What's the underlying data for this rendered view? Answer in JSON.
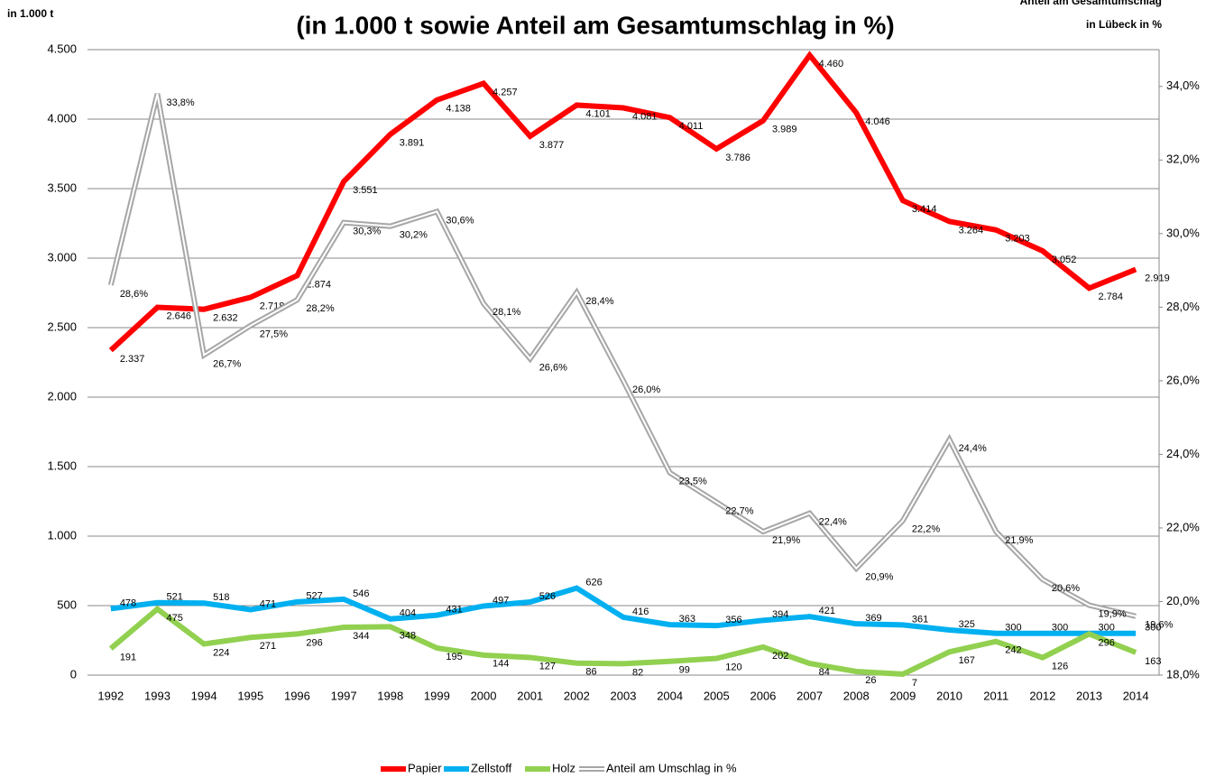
{
  "chart_data": {
    "type": "line",
    "title": "(in 1.000 t  sowie Anteil am Gesamtumschlag in %)",
    "y_label": "in 1.000 t",
    "y2_label": [
      "Anteil am Gesamtumschlag",
      "in Lübeck in %"
    ],
    "categories": [
      "1992",
      "1993",
      "1994",
      "1995",
      "1996",
      "1997",
      "1998",
      "1999",
      "2000",
      "2001",
      "2002",
      "2003",
      "2004",
      "2005",
      "2006",
      "2007",
      "2008",
      "2009",
      "2010",
      "2011",
      "2012",
      "2013",
      "2014"
    ],
    "ylim": [
      0,
      4500
    ],
    "yticks": [
      0,
      500,
      {
        "value": 1000,
        "label": "1.000"
      },
      {
        "value": 1500,
        "label": "1.500"
      },
      {
        "value": 2000,
        "label": "2.000"
      },
      {
        "value": 2500,
        "label": "2.500"
      },
      {
        "value": 3000,
        "label": "3.000"
      },
      {
        "value": 3500,
        "label": "3.500"
      },
      {
        "value": 4000,
        "label": "4.000"
      },
      {
        "value": 4500,
        "label": "4.500"
      }
    ],
    "y2lim": [
      18,
      35
    ],
    "y2ticks": [
      {
        "value": 18,
        "label": "18,0%"
      },
      {
        "value": 20,
        "label": "20,0%"
      },
      {
        "value": 22,
        "label": "22,0%"
      },
      {
        "value": 24,
        "label": "24,0%"
      },
      {
        "value": 26,
        "label": "26,0%"
      },
      {
        "value": 28,
        "label": "28,0%"
      },
      {
        "value": 30,
        "label": "30,0%"
      },
      {
        "value": 32,
        "label": "32,0%"
      },
      {
        "value": 34,
        "label": "34,0%"
      }
    ],
    "grid": true,
    "legend": "bottom",
    "series": [
      {
        "name": "Papier",
        "color": "#ff0000",
        "axis": "y",
        "values": [
          2337,
          2646,
          2632,
          2718,
          2874,
          3551,
          3891,
          4138,
          4257,
          3877,
          4101,
          4081,
          4011,
          3786,
          3989,
          4460,
          4046,
          3414,
          3264,
          3203,
          3052,
          2784,
          2919
        ],
        "value_labels": [
          "2.337",
          "2.646",
          "2.632",
          "2.718",
          "2.874",
          "3.551",
          "3.891",
          "4.138",
          "4.257",
          "3.877",
          "4.101",
          "4.081",
          "4.011",
          "3.786",
          "3.989",
          "4.460",
          "4.046",
          "3.414",
          "3.264",
          "3.203",
          "3.052",
          "2.784",
          "2.919"
        ]
      },
      {
        "name": "Zellstoff",
        "color": "#00b0f0",
        "axis": "y",
        "values": [
          478,
          521,
          518,
          471,
          527,
          546,
          404,
          431,
          497,
          526,
          626,
          416,
          363,
          356,
          394,
          421,
          369,
          361,
          325,
          300,
          300,
          300,
          300
        ]
      },
      {
        "name": "Holz",
        "color": "#92d050",
        "axis": "y",
        "values": [
          191,
          475,
          224,
          271,
          296,
          344,
          348,
          195,
          144,
          127,
          86,
          82,
          99,
          120,
          202,
          84,
          26,
          7,
          167,
          242,
          126,
          296,
          163
        ]
      },
      {
        "name": "Anteil am Umschlag in %",
        "color": "#a6a6a6",
        "axis": "y2",
        "values": [
          28.6,
          33.8,
          26.7,
          27.5,
          28.2,
          30.3,
          30.2,
          30.6,
          28.1,
          26.6,
          28.4,
          26.0,
          23.5,
          22.7,
          21.9,
          22.4,
          20.9,
          22.2,
          24.4,
          21.9,
          20.6,
          19.9,
          19.6
        ],
        "value_labels": [
          "28,6%",
          "33,8%",
          "26,7%",
          "27,5%",
          "28,2%",
          "30,3%",
          "30,2%",
          "30,6%",
          "28,1%",
          "26,6%",
          "28,4%",
          "26,0%",
          "23,5%",
          "22,7%",
          "21,9%",
          "22,4%",
          "20,9%",
          "22,2%",
          "24,4%",
          "21,9%",
          "20,6%",
          "19,9%",
          "19,6%"
        ]
      }
    ]
  }
}
